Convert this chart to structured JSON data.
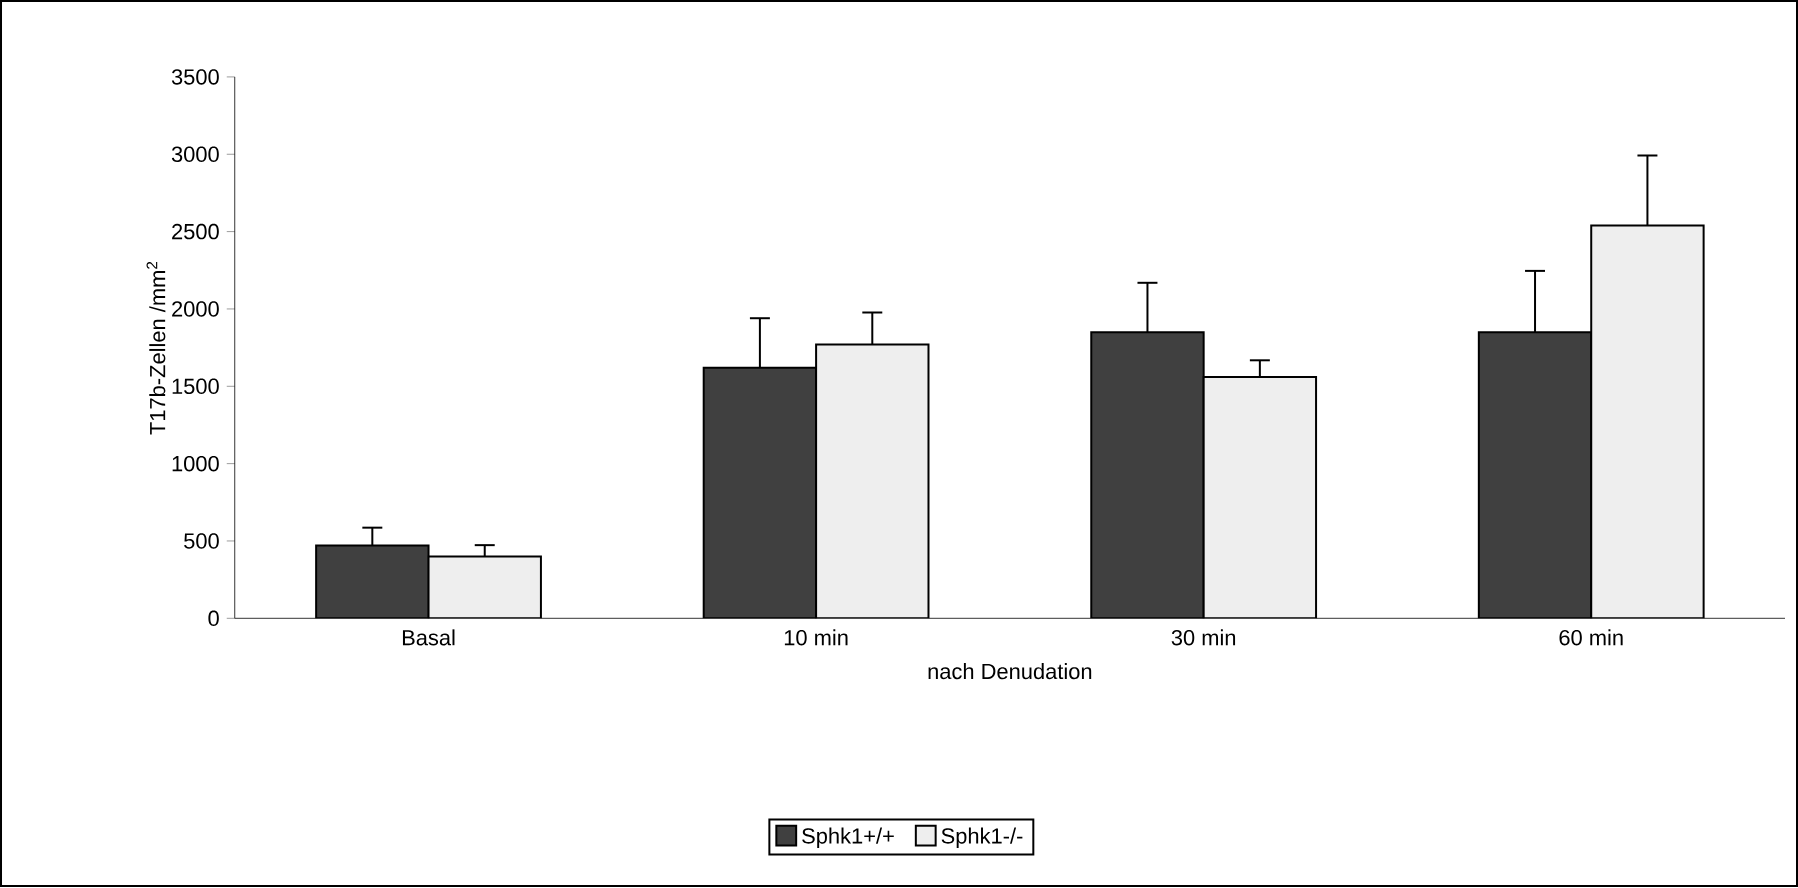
{
  "chart_data": {
    "type": "bar",
    "xlabel": "nach Denudation",
    "ylabel": "T17b-Zellen /mm$^{2}$",
    "categories": [
      "Basal",
      "10 min",
      "30 min",
      "60 min"
    ],
    "series": [
      {
        "name": "Sphk1+/+",
        "color": "#404040",
        "values": [
          470,
          1620,
          1850,
          1850
        ],
        "errors": [
          116,
          320,
          319,
          396
        ]
      },
      {
        "name": "Sphk1-/-",
        "color": "#eeeeee",
        "values": [
          400,
          1770,
          1560,
          2540
        ],
        "errors": [
          73,
          207,
          108,
          452
        ]
      }
    ],
    "ylim": [
      0,
      3500
    ],
    "yticks": [
      0,
      500,
      1000,
      1500,
      2000,
      2500,
      3000,
      3500
    ],
    "legend": "bottom"
  }
}
